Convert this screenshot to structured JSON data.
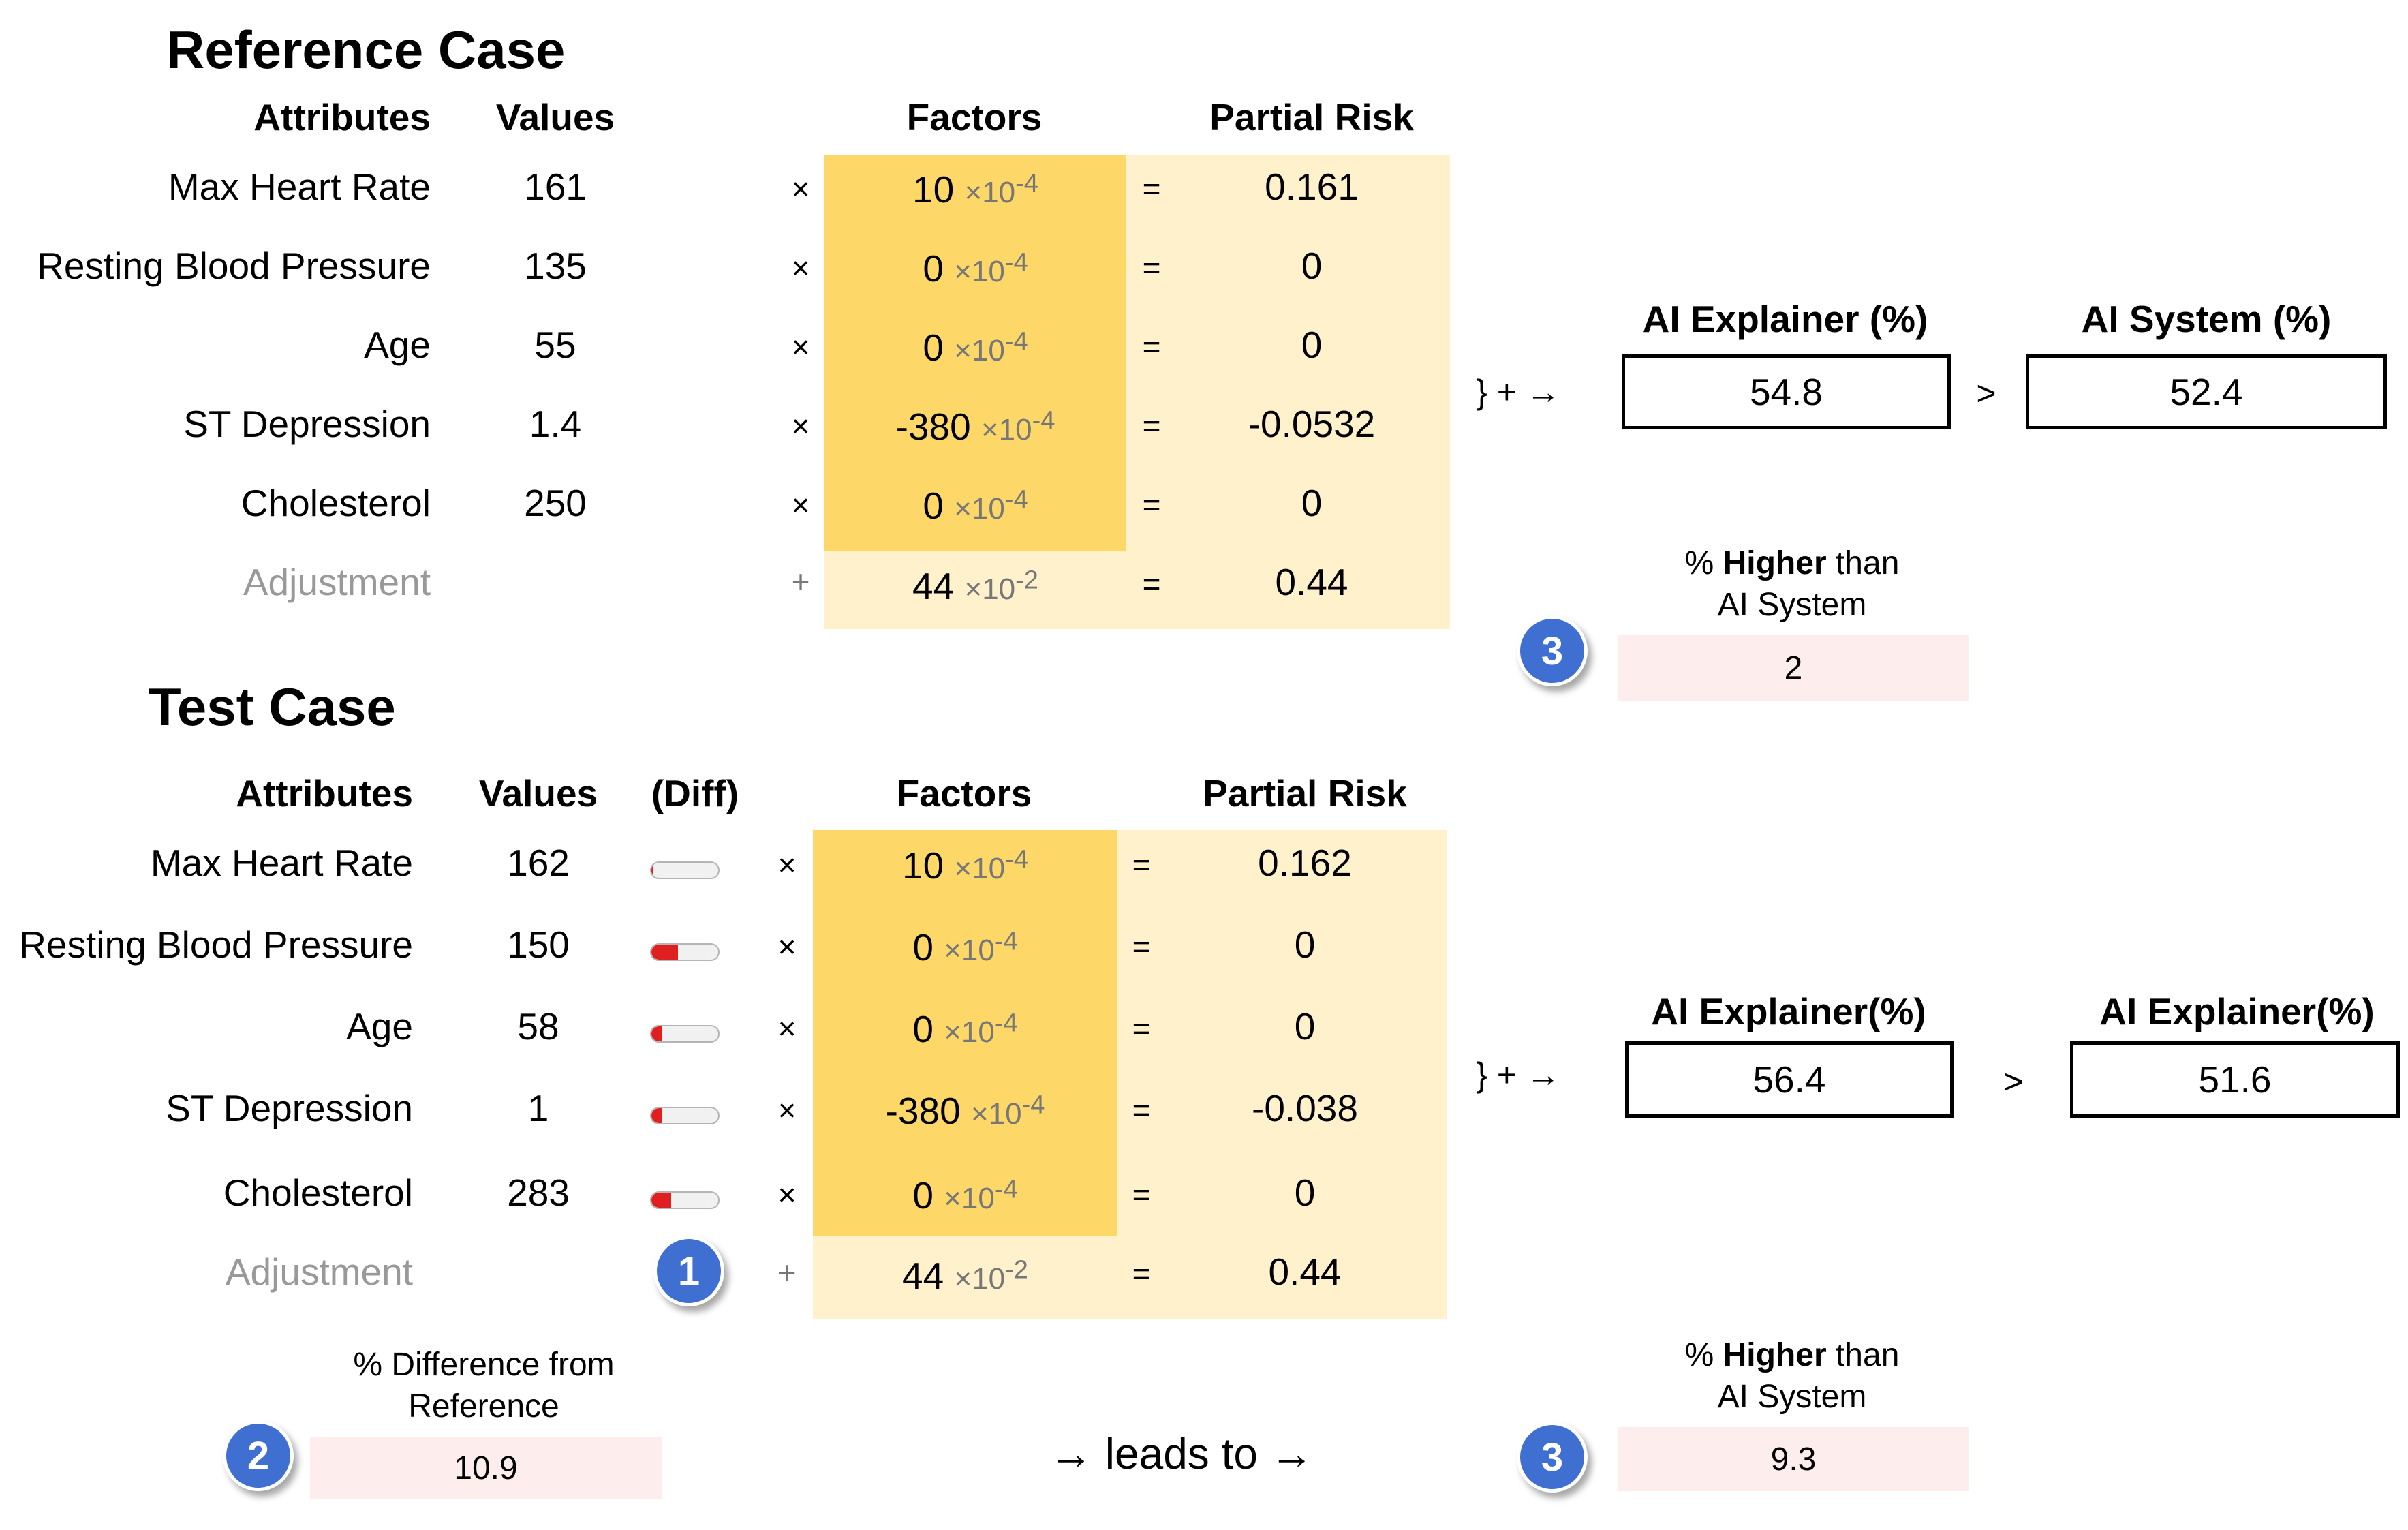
{
  "reference": {
    "title": "Reference Case",
    "headers": {
      "attributes": "Attributes",
      "values": "Values",
      "factors": "Factors",
      "partial_risk": "Partial Risk"
    },
    "rows": [
      {
        "attr": "Max Heart Rate",
        "value": "161",
        "op": "×",
        "factor": "10",
        "exp": "×10",
        "pow": "-4",
        "eq": "=",
        "partial": "0.161"
      },
      {
        "attr": "Resting Blood Pressure",
        "value": "135",
        "op": "×",
        "factor": "0",
        "exp": "×10",
        "pow": "-4",
        "eq": "=",
        "partial": "0"
      },
      {
        "attr": "Age",
        "value": "55",
        "op": "×",
        "factor": "0",
        "exp": "×10",
        "pow": "-4",
        "eq": "=",
        "partial": "0"
      },
      {
        "attr": "ST Depression",
        "value": "1.4",
        "op": "×",
        "factor": "-380",
        "exp": "×10",
        "pow": "-4",
        "eq": "=",
        "partial": "-0.0532"
      },
      {
        "attr": "Cholesterol",
        "value": "250",
        "op": "×",
        "factor": "0",
        "exp": "×10",
        "pow": "-4",
        "eq": "=",
        "partial": "0"
      }
    ],
    "adjustment": {
      "attr": "Adjustment",
      "op": "+",
      "factor": "44",
      "exp": "×10",
      "pow": "-2",
      "eq": "=",
      "partial": "0.44"
    },
    "sum_arrow": "}  +  →",
    "explainer_label": "AI Explainer (%)",
    "explainer_value": "54.8",
    "compare": ">",
    "system_label": "AI System (%)",
    "system_value": "52.4",
    "higher_label_pre": "% ",
    "higher_label_bold": "Higher",
    "higher_label_post": " than",
    "higher_label_line2": "AI System",
    "higher_value": "2",
    "badge": "3"
  },
  "test": {
    "title": "Test Case",
    "headers": {
      "attributes": "Attributes",
      "values": "Values",
      "diff": "(Diff)",
      "factors": "Factors",
      "partial_risk": "Partial Risk"
    },
    "rows": [
      {
        "attr": "Max Heart Rate",
        "value": "162",
        "diff": 0.01,
        "op": "×",
        "factor": "10",
        "exp": "×10",
        "pow": "-4",
        "eq": "=",
        "partial": "0.162"
      },
      {
        "attr": "Resting Blood Pressure",
        "value": "150",
        "diff": 0.4,
        "op": "×",
        "factor": "0",
        "exp": "×10",
        "pow": "-4",
        "eq": "=",
        "partial": "0"
      },
      {
        "attr": "Age",
        "value": "58",
        "diff": 0.15,
        "op": "×",
        "factor": "0",
        "exp": "×10",
        "pow": "-4",
        "eq": "=",
        "partial": "0"
      },
      {
        "attr": "ST Depression",
        "value": "1",
        "diff": 0.15,
        "op": "×",
        "factor": "-380",
        "exp": "×10",
        "pow": "-4",
        "eq": "=",
        "partial": "-0.038"
      },
      {
        "attr": "Cholesterol",
        "value": "283",
        "diff": 0.3,
        "op": "×",
        "factor": "0",
        "exp": "×10",
        "pow": "-4",
        "eq": "=",
        "partial": "0"
      }
    ],
    "adjustment": {
      "attr": "Adjustment",
      "op": "+",
      "factor": "44",
      "exp": "×10",
      "pow": "-2",
      "eq": "=",
      "partial": "0.44"
    },
    "badge_diff": "1",
    "sum_arrow": "}  +  →",
    "explainer_label": "AI Explainer(%)",
    "explainer_value": "56.4",
    "compare": ">",
    "system_label": "AI Explainer(%)",
    "system_value": "51.6",
    "pct_diff_label_line1": "% Difference from",
    "pct_diff_label_line2": "Reference",
    "pct_diff_value": "10.9",
    "badge_pct_diff": "2",
    "leads_to": "→ leads to →",
    "higher_label_pre": "% ",
    "higher_label_bold": "Higher",
    "higher_label_post": " than",
    "higher_label_line2": "AI System",
    "higher_value": "9.3",
    "badge_higher": "3"
  },
  "colors": {
    "factor_bg": "#fdd868",
    "partial_bg": "#fef1cc",
    "pink_box": "#fdeeed",
    "badge": "#3f6fd1",
    "diff_fill": "#e02020"
  }
}
